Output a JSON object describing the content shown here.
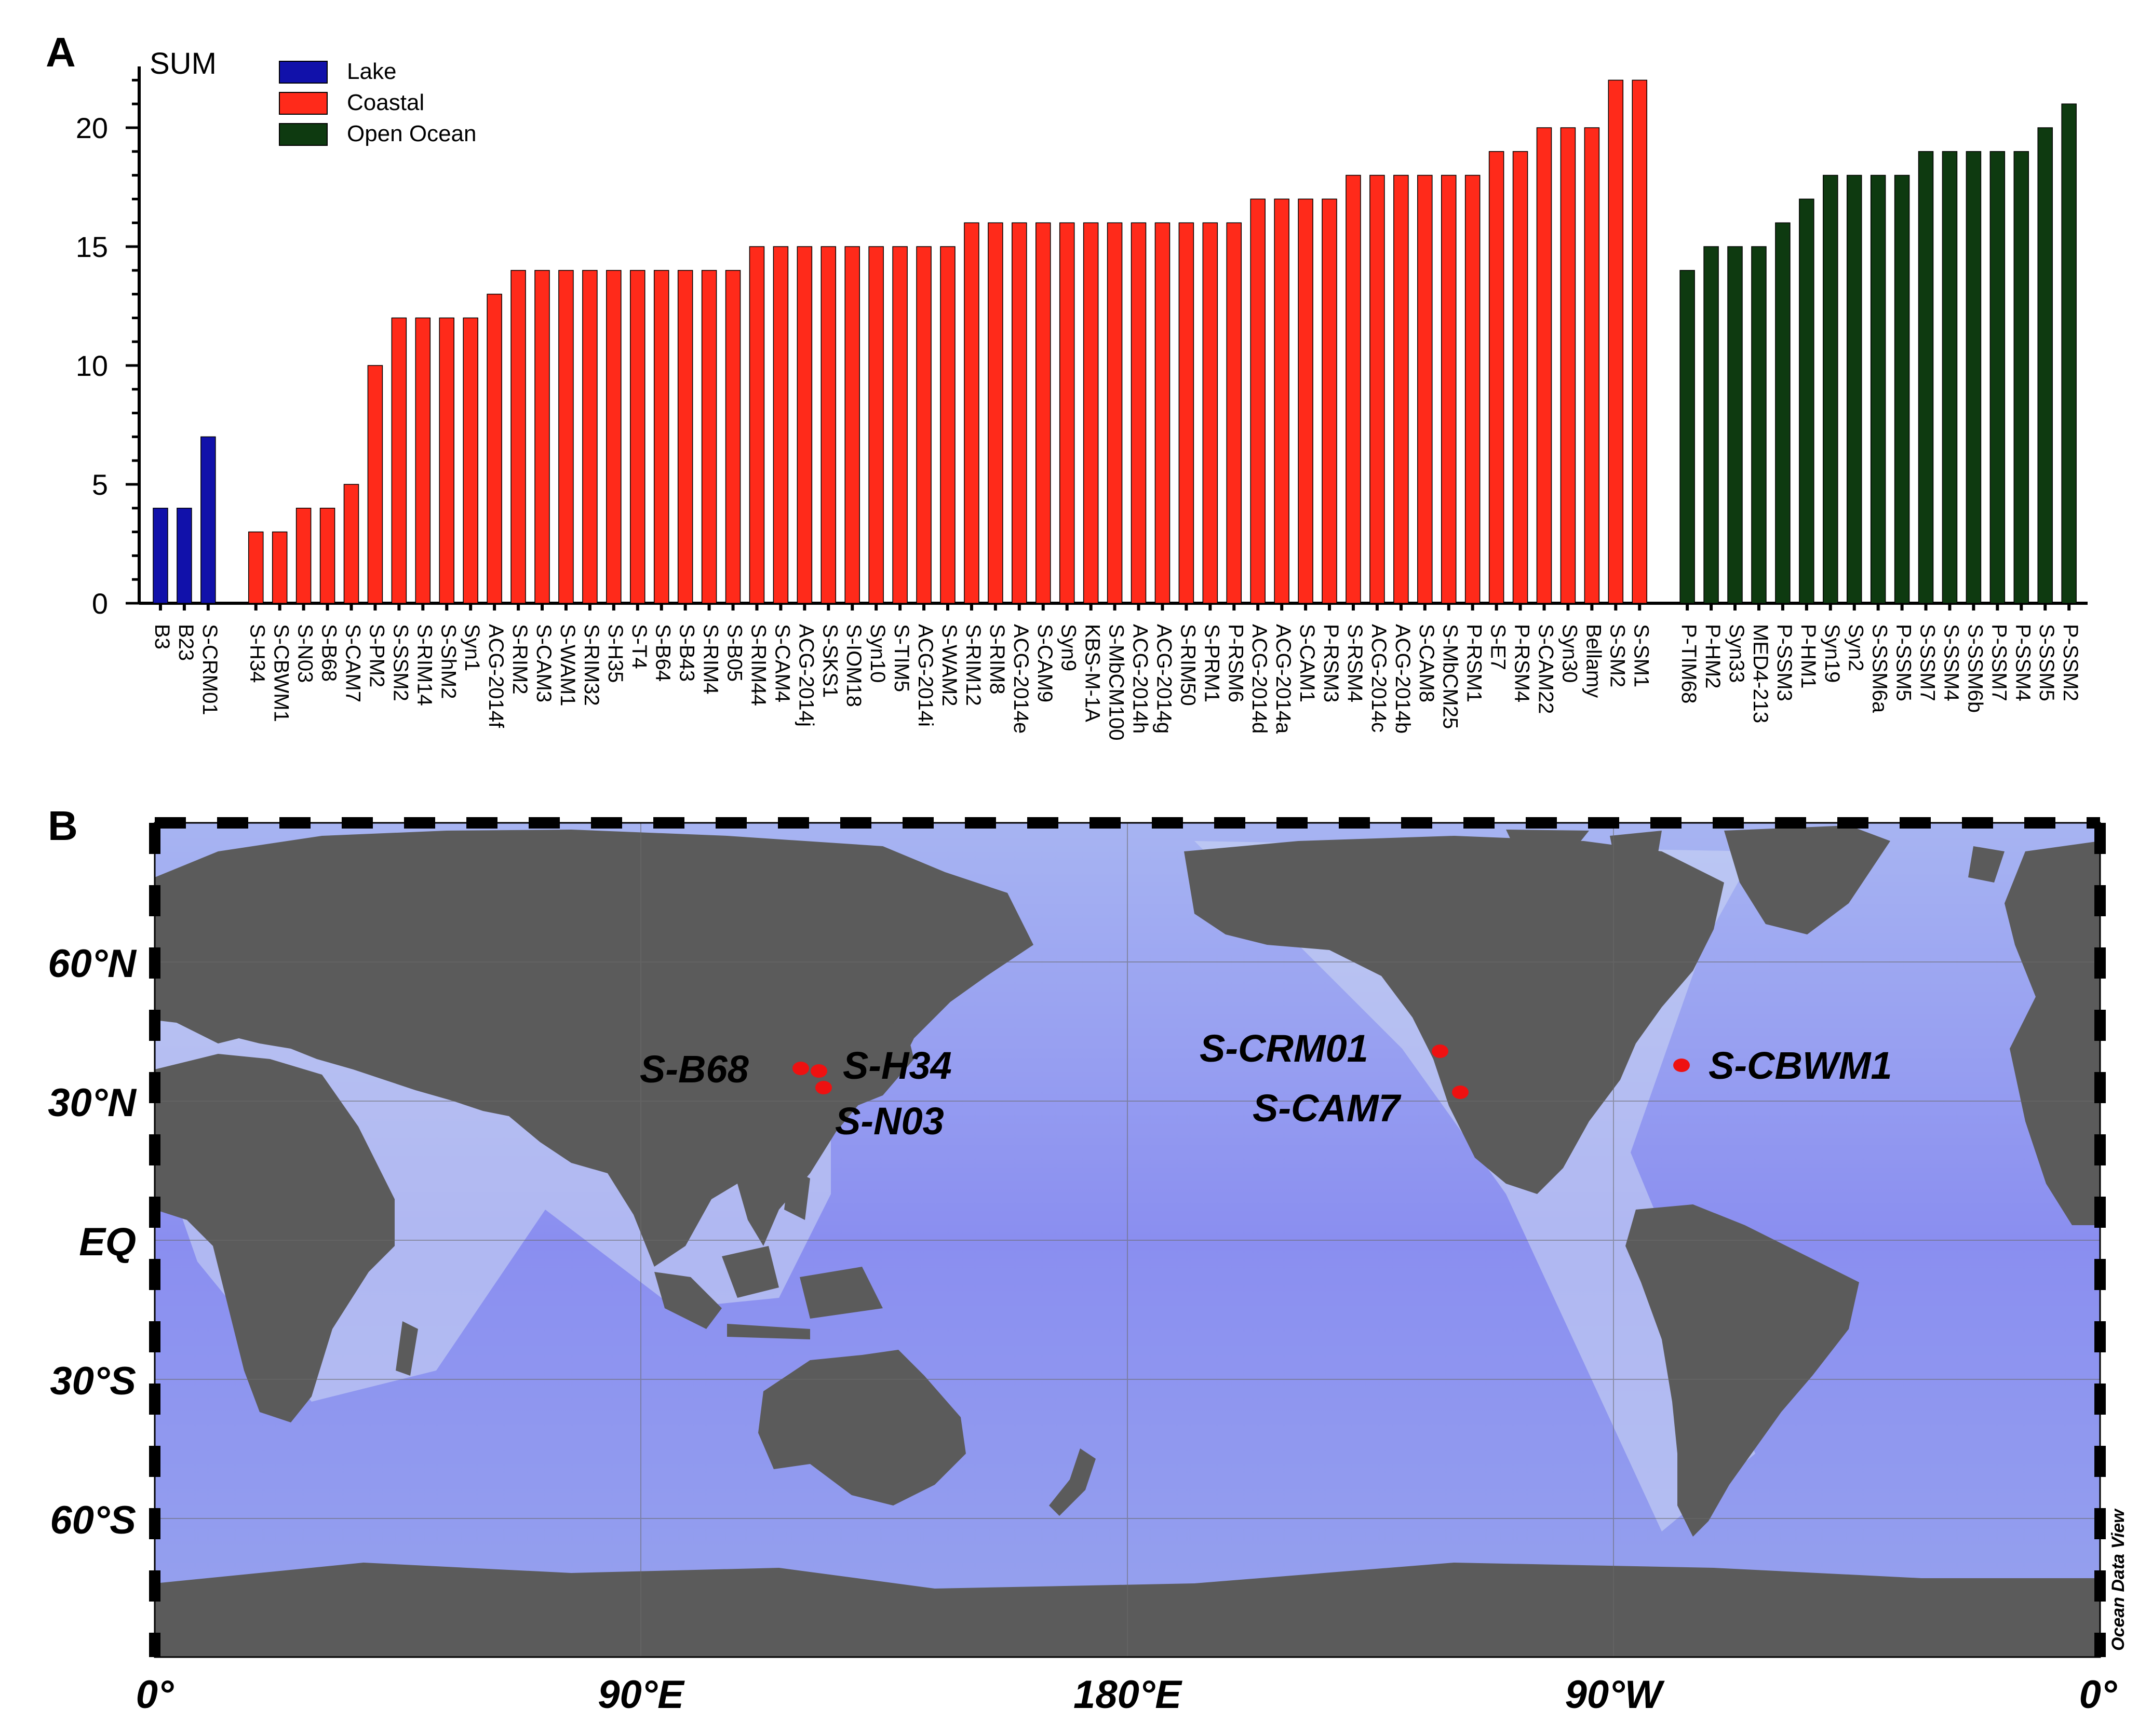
{
  "panels": {
    "a": "A",
    "b": "B"
  },
  "chart_data": {
    "type": "bar",
    "ylabel": "SUM",
    "ylim": [
      0,
      22
    ],
    "yticks": [
      0,
      5,
      10,
      15,
      20
    ],
    "grid": false,
    "legend": {
      "placement": "top-left",
      "entries": [
        {
          "name": "Lake",
          "color": "#1111aa"
        },
        {
          "name": "Coastal",
          "color": "#ff2a1a"
        },
        {
          "name": "Open Ocean",
          "color": "#0e3a10"
        }
      ]
    },
    "groups": [
      {
        "name": "Lake",
        "color": "#1111aa",
        "categories": [
          "B3",
          "B23",
          "S-CRM01"
        ],
        "values": [
          4,
          4,
          7
        ]
      },
      {
        "name": "Coastal",
        "color": "#ff2a1a",
        "categories": [
          "S-H34",
          "S-CBWM1",
          "S-N03",
          "S-B68",
          "S-CAM7",
          "S-PM2",
          "S-SSM2",
          "S-RIM14",
          "S-ShM2",
          "Syn1",
          "ACG-2014f",
          "S-RIM2",
          "S-CAM3",
          "S-WAM1",
          "S-RIM32",
          "S-H35",
          "S-T4",
          "S-B64",
          "S-B43",
          "S-RIM4",
          "S-B05",
          "S-RIM44",
          "S-CAM4",
          "ACG-2014j",
          "S-SKS1",
          "S-IOM18",
          "Syn10",
          "S-TIM5",
          "ACG-2014i",
          "S-WAM2",
          "S-RIM12",
          "S-RIM8",
          "ACG-2014e",
          "S-CAM9",
          "Syn9",
          "KBS-M-1A",
          "S-MbCM100",
          "ACG-2014h",
          "ACG-2014g",
          "S-RIM50",
          "S-PRM1",
          "P-RSM6",
          "ACG-2014d",
          "ACG-2014a",
          "S-CAM1",
          "P-RSM3",
          "S-RSM4",
          "ACG-2014c",
          "ACG-2014b",
          "S-CAM8",
          "S-MbCM25",
          "P-RSM1",
          "S-E7",
          "P-RSM4",
          "S-CAM22",
          "Syn30",
          "Bellamy",
          "S-SM2",
          "S-SM1"
        ],
        "values": [
          3,
          3,
          4,
          4,
          5,
          10,
          12,
          12,
          12,
          12,
          13,
          14,
          14,
          14,
          14,
          14,
          14,
          14,
          14,
          14,
          14,
          15,
          15,
          15,
          15,
          15,
          15,
          15,
          15,
          15,
          16,
          16,
          16,
          16,
          16,
          16,
          16,
          16,
          16,
          16,
          16,
          16,
          17,
          17,
          17,
          17,
          18,
          18,
          18,
          18,
          18,
          18,
          19,
          19,
          20,
          20,
          20,
          22,
          22
        ]
      },
      {
        "name": "Open Ocean",
        "color": "#0e3a10",
        "categories": [
          "P-TIM68",
          "P-HM2",
          "Syn33",
          "MED4-213",
          "P-SSM3",
          "P-HM1",
          "Syn19",
          "Syn2",
          "S-SSM6a",
          "P-SSM5",
          "S-SSM7",
          "S-SSM4",
          "S-SSM6b",
          "P-SSM7",
          "P-SSM4",
          "S-SSM5",
          "P-SSM2"
        ],
        "values": [
          14,
          15,
          15,
          15,
          16,
          17,
          18,
          18,
          18,
          18,
          19,
          19,
          19,
          19,
          19,
          20,
          21
        ]
      }
    ]
  },
  "map": {
    "lat_labels": [
      "60°N",
      "30°N",
      "EQ",
      "30°S",
      "60°S"
    ],
    "lon_labels": [
      "0°",
      "90°E",
      "180°E",
      "90°W",
      "0°"
    ],
    "sites": [
      "S-B68",
      "S-H34",
      "S-N03",
      "S-CRM01",
      "S-CAM7",
      "S-CBWM1"
    ],
    "credit": "Ocean Data View",
    "colors": {
      "ocean": "#8b8ff0",
      "land": "#5b5b5b",
      "shelf": "#d9c3b6",
      "site_marker": "#ee1111"
    }
  }
}
